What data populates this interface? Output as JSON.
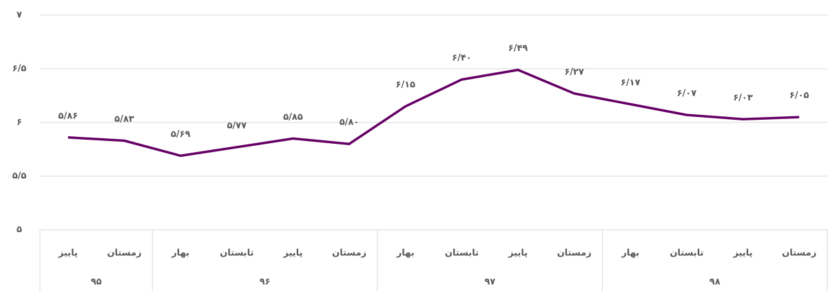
{
  "chart_data": {
    "type": "line",
    "color": "#660066",
    "grid": true,
    "groups": [
      {
        "label": "۹۵",
        "categories": [
          "پاییز",
          "زمستان"
        ]
      },
      {
        "label": "۹۶",
        "categories": [
          "بهار",
          "تابستان",
          "پاییز",
          "زمستان"
        ]
      },
      {
        "label": "۹۷",
        "categories": [
          "بهار",
          "تابستان",
          "پاییز",
          "زمستان"
        ]
      },
      {
        "label": "۹۸",
        "categories": [
          "بهار",
          "تابستان",
          "پاییز",
          "زمستان"
        ]
      }
    ],
    "values": [
      5.86,
      5.83,
      5.69,
      5.77,
      5.85,
      5.8,
      6.15,
      6.4,
      6.49,
      6.27,
      6.17,
      6.07,
      6.03,
      6.05
    ],
    "value_labels": [
      "۵/۸۶",
      "۵/۸۳",
      "۵/۶۹",
      "۵/۷۷",
      "۵/۸۵",
      "۵/۸۰",
      "۶/۱۵",
      "۶/۴۰",
      "۶/۴۹",
      "۶/۲۷",
      "۶/۱۷",
      "۶/۰۷",
      "۶/۰۳",
      "۶/۰۵"
    ],
    "ylim": [
      5,
      7
    ],
    "yticks": [
      {
        "value": 5,
        "label": "۵"
      },
      {
        "value": 5.5,
        "label": "۵/۵"
      },
      {
        "value": 6,
        "label": "۶"
      },
      {
        "value": 6.5,
        "label": "۶/۵"
      },
      {
        "value": 7,
        "label": "۷"
      }
    ]
  }
}
